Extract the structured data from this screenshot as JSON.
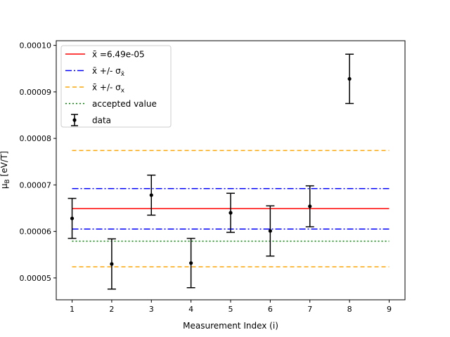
{
  "chart_data": {
    "type": "scatter",
    "title": "",
    "xlabel": "Measurement Index (i)",
    "ylabel": "μ_B [eV/T]",
    "xlim": [
      0.6,
      9.4
    ],
    "ylim": [
      4.53e-05,
      0.000101
    ],
    "xticks": [
      1,
      2,
      3,
      4,
      5,
      6,
      7,
      8,
      9
    ],
    "xtick_labels": [
      "1",
      "2",
      "3",
      "4",
      "5",
      "6",
      "7",
      "8",
      "9"
    ],
    "yticks": [
      5e-05,
      6e-05,
      7e-05,
      8e-05,
      9e-05,
      0.0001
    ],
    "ytick_labels": [
      "0.00005",
      "0.00006",
      "0.00007",
      "0.00008",
      "0.00009",
      "0.00010"
    ],
    "grid": false,
    "legend_position": "top-left",
    "series": [
      {
        "name": "data",
        "kind": "errorbar",
        "color": "#000000",
        "x": [
          1,
          2,
          3,
          4,
          5,
          6,
          7,
          8
        ],
        "y": [
          6.28e-05,
          5.3e-05,
          6.78e-05,
          5.32e-05,
          6.4e-05,
          6.01e-05,
          6.54e-05,
          9.28e-05
        ],
        "yerr": [
          4.3e-06,
          5.4e-06,
          4.3e-06,
          5.3e-06,
          4.2e-06,
          5.4e-06,
          4.4e-06,
          5.3e-06
        ]
      }
    ],
    "hlines": [
      {
        "name": "mean",
        "label_prefix": "x̄",
        "label_value": " =6.49e-05",
        "y": 6.49e-05,
        "x_range": [
          1,
          9
        ],
        "color": "#ff0000",
        "dash": "solid"
      },
      {
        "name": "mean-sem-upper",
        "y": 6.92e-05,
        "x_range": [
          1,
          9
        ],
        "color": "#0000ff",
        "dash": "dashdot"
      },
      {
        "name": "mean-sem-lower",
        "y": 6.05e-05,
        "x_range": [
          1,
          9
        ],
        "color": "#0000ff",
        "dash": "dashdot"
      },
      {
        "name": "mean-std-upper",
        "y": 7.74e-05,
        "x_range": [
          1,
          9
        ],
        "color": "#ffa500",
        "dash": "dashed"
      },
      {
        "name": "mean-std-lower",
        "y": 5.24e-05,
        "x_range": [
          1,
          9
        ],
        "color": "#ffa500",
        "dash": "dashed"
      },
      {
        "name": "accepted-value",
        "y": 5.79e-05,
        "x_range": [
          1,
          9
        ],
        "color": "#008000",
        "dash": "dotted"
      }
    ],
    "legend": [
      {
        "key": "mean",
        "label_main": "x̄",
        "label_rest": " =6.49e-05",
        "label_sub": "",
        "color": "#ff0000",
        "style": "solid"
      },
      {
        "key": "sem",
        "label_main": "x̄ +/- σ",
        "label_rest": "",
        "label_sub": "x̄",
        "color": "#0000ff",
        "style": "dashdot"
      },
      {
        "key": "std",
        "label_main": "x̄ +/- σ",
        "label_rest": "",
        "label_sub": "x",
        "color": "#ffa500",
        "style": "dashed"
      },
      {
        "key": "accepted",
        "label_main": "accepted value",
        "label_rest": "",
        "label_sub": "",
        "color": "#008000",
        "style": "dotted"
      },
      {
        "key": "data",
        "label_main": "data",
        "label_rest": "",
        "label_sub": "",
        "color": "#000000",
        "style": "errorbar"
      }
    ]
  }
}
